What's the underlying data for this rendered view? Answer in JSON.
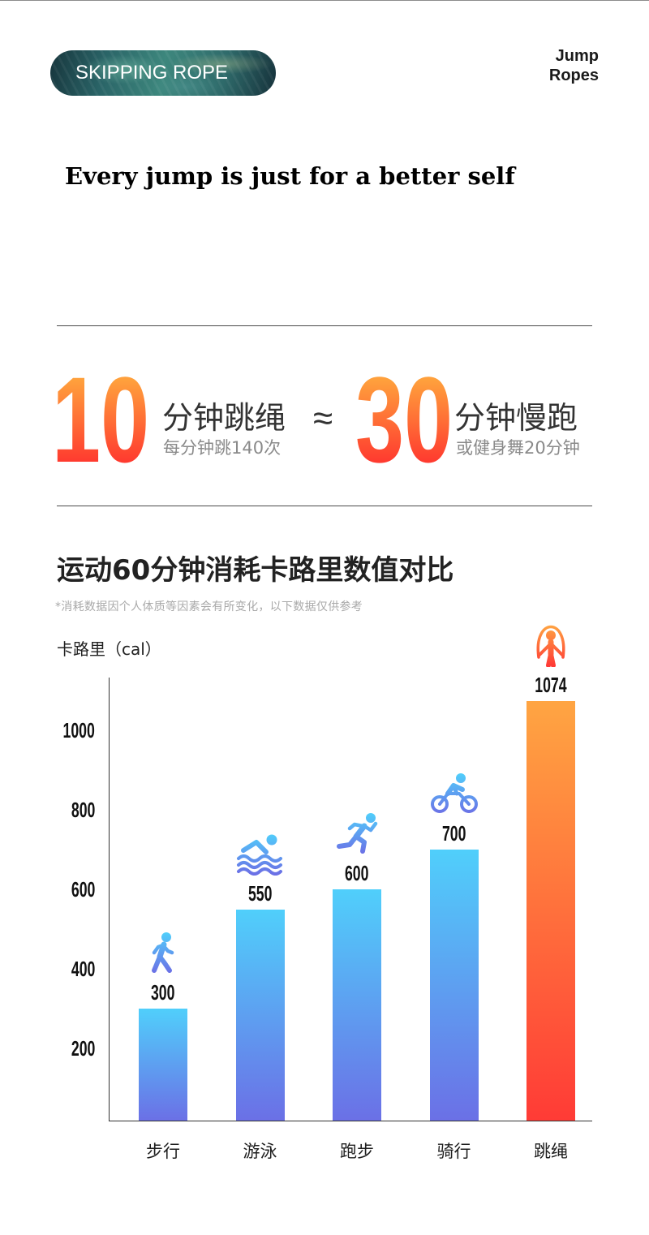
{
  "header": {
    "badge_label": "SKIPPING ROPE",
    "brand_line1": "Jump",
    "brand_line2": "Ropes"
  },
  "slogan": "Every jump is just for a better self",
  "comparison": {
    "left": {
      "number": "10",
      "label": "分钟跳绳",
      "sub": "每分钟跳140次"
    },
    "approx": "≈",
    "right": {
      "number": "30",
      "label": "分钟慢跑",
      "sub": "或健身舞20分钟"
    }
  },
  "colors": {
    "accent_top": "#ffa03c",
    "accent_bottom": "#ff3a2f",
    "bar_top": "#50cffb",
    "bar_bottom": "#6b70e6",
    "highlight_bar_top": "#ffa542",
    "highlight_bar_bottom": "#ff3b36"
  },
  "chart_data": {
    "type": "bar",
    "title": "运动60分钟消耗卡路里数值对比",
    "note": "*消耗数据因个人体质等因素会有所变化，以下数据仅供参考",
    "xlabel": "",
    "ylabel": "卡路里（cal）",
    "categories": [
      "步行",
      "游泳",
      "跑步",
      "骑行",
      "跳绳"
    ],
    "values": [
      300,
      550,
      600,
      700,
      1074
    ],
    "yticks": [
      200,
      400,
      600,
      800,
      1000
    ],
    "ylim": [
      0,
      1100
    ],
    "grid": false,
    "highlight_index": 4,
    "icons": [
      "walking-icon",
      "swimming-icon",
      "running-icon",
      "cycling-icon",
      "jump-rope-icon"
    ]
  }
}
